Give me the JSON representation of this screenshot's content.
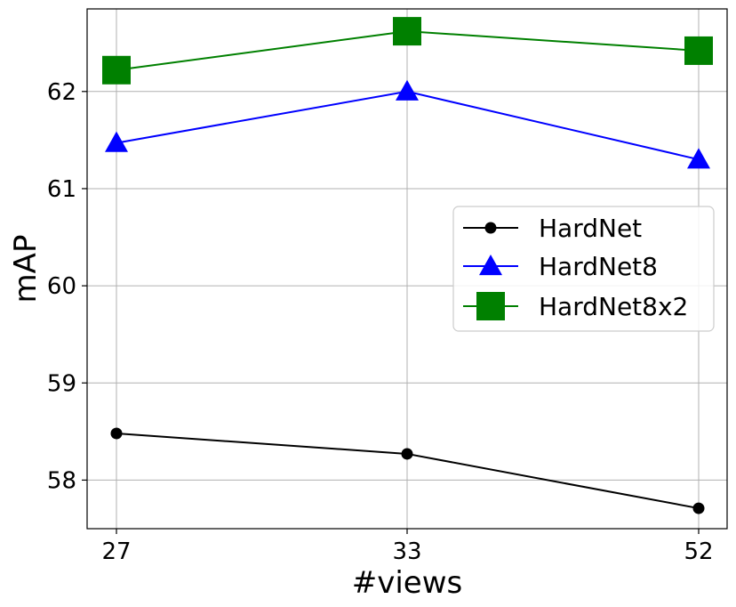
{
  "chart_data": {
    "type": "line",
    "title": "",
    "xlabel": "#views",
    "ylabel": "mAP",
    "categories": [
      "27",
      "33",
      "52"
    ],
    "yticks": [
      "58",
      "59",
      "60",
      "61",
      "62"
    ],
    "ylim": [
      57.5,
      62.85
    ],
    "grid": true,
    "legend_position": "center-right",
    "series": [
      {
        "name": "HardNet",
        "color": "#000000",
        "marker": "circle",
        "values": [
          58.48,
          58.27,
          57.71
        ]
      },
      {
        "name": "HardNet8",
        "color": "#0000ff",
        "marker": "triangle",
        "values": [
          61.47,
          62.0,
          61.3
        ]
      },
      {
        "name": "HardNet8x2",
        "color": "#008000",
        "marker": "square",
        "values": [
          62.22,
          62.62,
          62.42
        ]
      }
    ]
  }
}
